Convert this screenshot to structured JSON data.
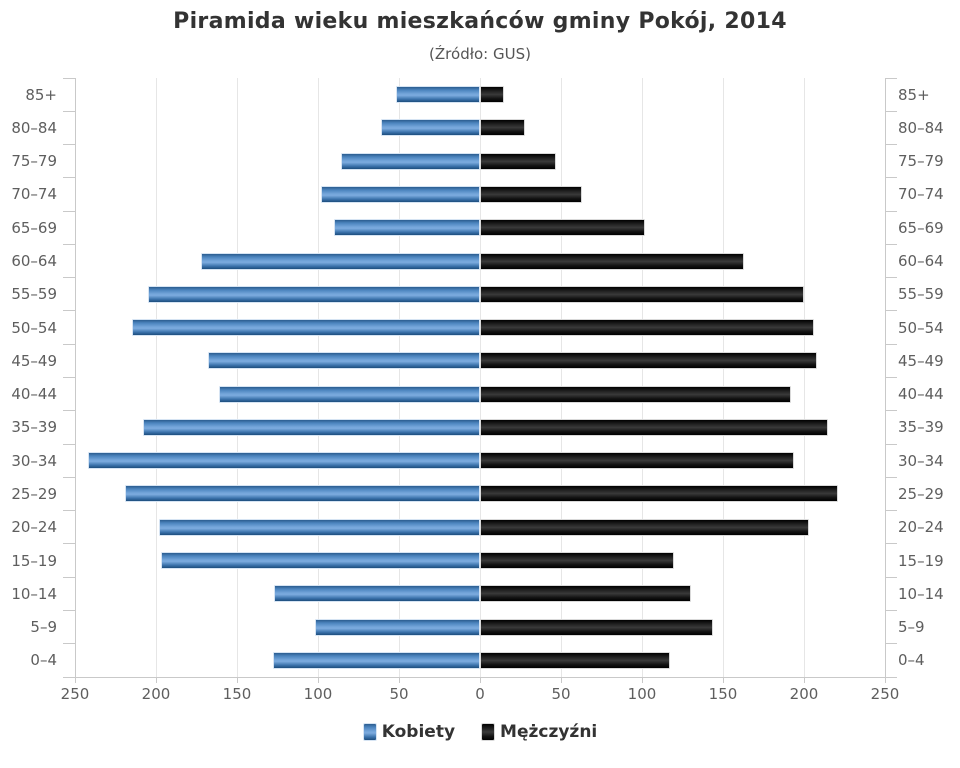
{
  "chart_data": {
    "type": "bar",
    "variant": "population_pyramid",
    "title": "Piramida wieku mieszkańców gminy Pokój, 2014",
    "subtitle": "(Źródło: GUS)",
    "categories": [
      "85+",
      "80–84",
      "75–79",
      "70–74",
      "65–69",
      "60–64",
      "55–59",
      "50–54",
      "45–49",
      "40–44",
      "35–39",
      "30–34",
      "25–29",
      "20–24",
      "15–19",
      "10–14",
      "5–9",
      "0–4"
    ],
    "series": [
      {
        "name": "Kobiety",
        "color": "#4f86c0",
        "side": "left",
        "values": [
          52,
          61,
          86,
          98,
          90,
          172,
          205,
          215,
          168,
          161,
          208,
          242,
          219,
          198,
          197,
          127,
          102,
          128
        ]
      },
      {
        "name": "Mężczyźni",
        "color": "#151515",
        "side": "right",
        "values": [
          15,
          28,
          47,
          63,
          102,
          163,
          200,
          206,
          208,
          192,
          215,
          194,
          221,
          203,
          120,
          130,
          144,
          117
        ]
      }
    ],
    "x_axis": {
      "tick_values": [
        -250,
        -200,
        -150,
        -100,
        -50,
        0,
        50,
        100,
        150,
        200,
        250
      ],
      "tick_labels": [
        "250",
        "200",
        "150",
        "100",
        "50",
        "0",
        "50",
        "100",
        "150",
        "200",
        "250"
      ],
      "max_abs": 250,
      "grid": true
    },
    "xlabel": "",
    "ylabel": "",
    "legend_position": "bottom",
    "colors": {
      "grid": "#e6e6e6",
      "axis_line": "#c9c9c9",
      "axis_label": "#5e5e5e",
      "title": "#333333",
      "subtitle": "#555555"
    }
  }
}
